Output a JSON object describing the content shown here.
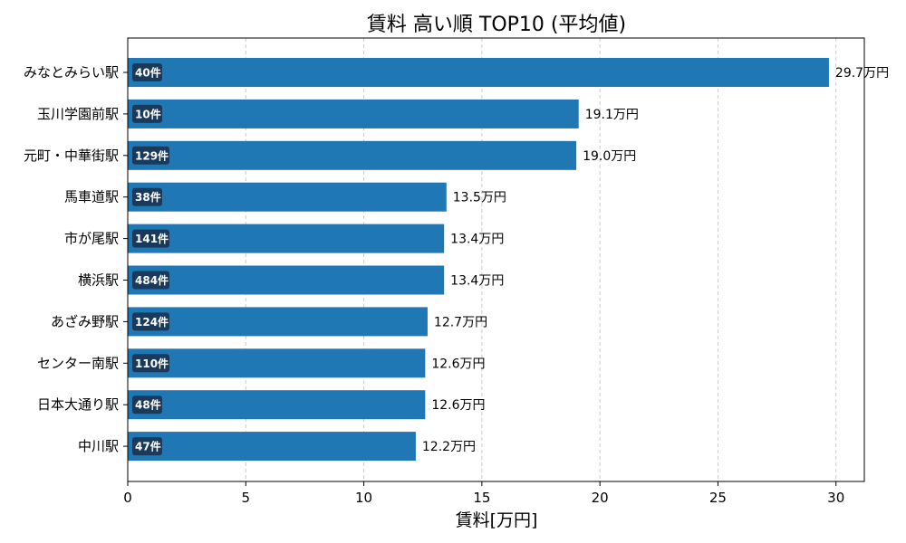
{
  "chart_data": {
    "type": "bar",
    "orientation": "horizontal",
    "title": "賃料 高い順 TOP10 (平均値)",
    "xlabel": "賃料[万円]",
    "ylabel": "",
    "xlim": [
      0,
      31.2
    ],
    "xticks": [
      0,
      5,
      10,
      15,
      20,
      25,
      30
    ],
    "grid": "x-dashed",
    "bar_color": "#1f77b4",
    "badge_color": "#1a3a5c",
    "categories": [
      "みなとみらい駅",
      "玉川学園前駅",
      "元町・中華街駅",
      "馬車道駅",
      "市が尾駅",
      "横浜駅",
      "あざみ野駅",
      "センター南駅",
      "日本大通り駅",
      "中川駅"
    ],
    "values": [
      29.7,
      19.1,
      19.0,
      13.5,
      13.4,
      13.4,
      12.7,
      12.6,
      12.6,
      12.2
    ],
    "value_labels": [
      "29.7万円",
      "19.1万円",
      "19.0万円",
      "13.5万円",
      "13.4万円",
      "13.4万円",
      "12.7万円",
      "12.6万円",
      "12.6万円",
      "12.2万円"
    ],
    "count_labels": [
      "40件",
      "10件",
      "129件",
      "38件",
      "141件",
      "484件",
      "124件",
      "110件",
      "48件",
      "47件"
    ]
  }
}
